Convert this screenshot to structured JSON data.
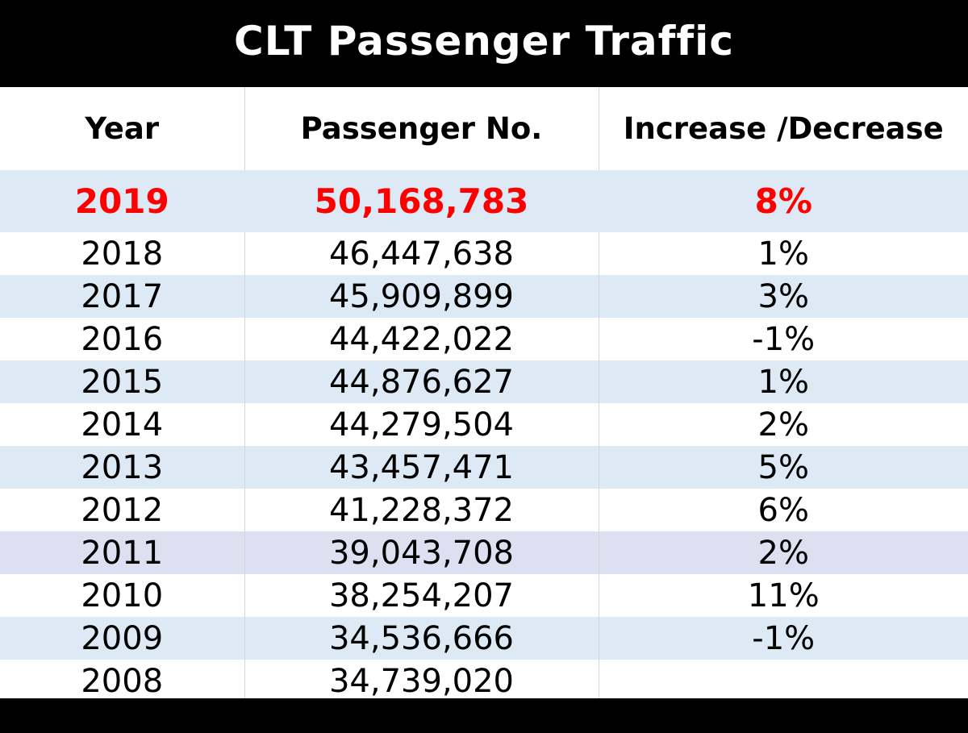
{
  "title": "CLT Passenger Traffic",
  "colors": {
    "title_bg": "#000000",
    "title_fg": "#ffffff",
    "highlight_text": "#ff0000",
    "band": "#dde9f5",
    "selected_band": "#dee0f2",
    "text": "#000000"
  },
  "chart_data": {
    "type": "table",
    "title": "CLT Passenger Traffic",
    "columns": [
      "Year",
      "Passenger No.",
      "Increase /Decrease"
    ],
    "rows": [
      {
        "year": "2019",
        "passengers": "50,168,783",
        "change": "8%"
      },
      {
        "year": "2018",
        "passengers": "46,447,638",
        "change": "1%"
      },
      {
        "year": "2017",
        "passengers": "45,909,899",
        "change": "3%"
      },
      {
        "year": "2016",
        "passengers": "44,422,022",
        "change": "-1%"
      },
      {
        "year": "2015",
        "passengers": "44,876,627",
        "change": "1%"
      },
      {
        "year": "2014",
        "passengers": "44,279,504",
        "change": "2%"
      },
      {
        "year": "2013",
        "passengers": "43,457,471",
        "change": "5%"
      },
      {
        "year": "2012",
        "passengers": "41,228,372",
        "change": "6%"
      },
      {
        "year": "2011",
        "passengers": "39,043,708",
        "change": "2%"
      },
      {
        "year": "2010",
        "passengers": "38,254,207",
        "change": "11%"
      },
      {
        "year": "2009",
        "passengers": "34,536,666",
        "change": "-1%"
      },
      {
        "year": "2008",
        "passengers": "34,739,020",
        "change": ""
      }
    ],
    "highlight_row": 0,
    "selected_row": 8
  }
}
